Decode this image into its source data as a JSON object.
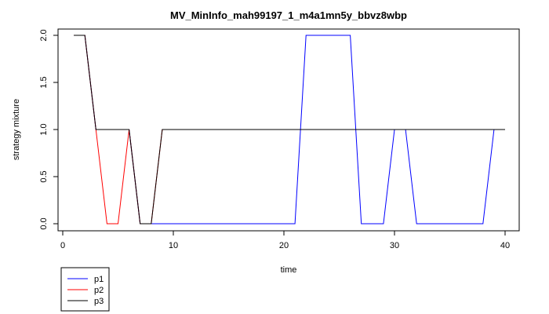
{
  "chart_data": {
    "type": "line",
    "title": "MV_MinInfo_mah99197_1_m4a1mn5y_bbvz8wbp",
    "xlabel": "time",
    "ylabel": "strategy mixture",
    "xlim": [
      0,
      40
    ],
    "ylim": [
      0,
      2
    ],
    "xticks": [
      0,
      10,
      20,
      30,
      40
    ],
    "yticks": [
      0.0,
      0.5,
      1.0,
      1.5,
      2.0
    ],
    "ytick_labels": [
      "0.0",
      "0.5",
      "1.0",
      "1.5",
      "2.0"
    ],
    "grid": false,
    "legend_position": "bottom-left",
    "x": [
      1,
      2,
      3,
      4,
      5,
      6,
      7,
      8,
      9,
      10,
      11,
      12,
      13,
      14,
      15,
      16,
      17,
      18,
      19,
      20,
      21,
      22,
      23,
      24,
      25,
      26,
      27,
      28,
      29,
      30,
      31,
      32,
      33,
      34,
      35,
      36,
      37,
      38,
      39,
      40
    ],
    "series": [
      {
        "name": "p1",
        "color": "#0000ff",
        "values": [
          2,
          2,
          1,
          1,
          1,
          1,
          0,
          0,
          0,
          0,
          0,
          0,
          0,
          0,
          0,
          0,
          0,
          0,
          0,
          0,
          0,
          2,
          2,
          2,
          2,
          2,
          0,
          0,
          0,
          1,
          1,
          0,
          0,
          0,
          0,
          0,
          0,
          0,
          1,
          1
        ]
      },
      {
        "name": "p2",
        "color": "#ff0000",
        "values": [
          2,
          2,
          1,
          0,
          0,
          1,
          0,
          0,
          1,
          1,
          1,
          1,
          1,
          1,
          1,
          1,
          1,
          1,
          1,
          1,
          1,
          1,
          1,
          1,
          1,
          1,
          1,
          1,
          1,
          1,
          1,
          1,
          1,
          1,
          1,
          1,
          1,
          1,
          1,
          1
        ]
      },
      {
        "name": "p3",
        "color": "#000000",
        "values": [
          2,
          2,
          1,
          1,
          1,
          1,
          0,
          0,
          1,
          1,
          1,
          1,
          1,
          1,
          1,
          1,
          1,
          1,
          1,
          1,
          1,
          1,
          1,
          1,
          1,
          1,
          1,
          1,
          1,
          1,
          1,
          1,
          1,
          1,
          1,
          1,
          1,
          1,
          1,
          1
        ]
      }
    ]
  }
}
